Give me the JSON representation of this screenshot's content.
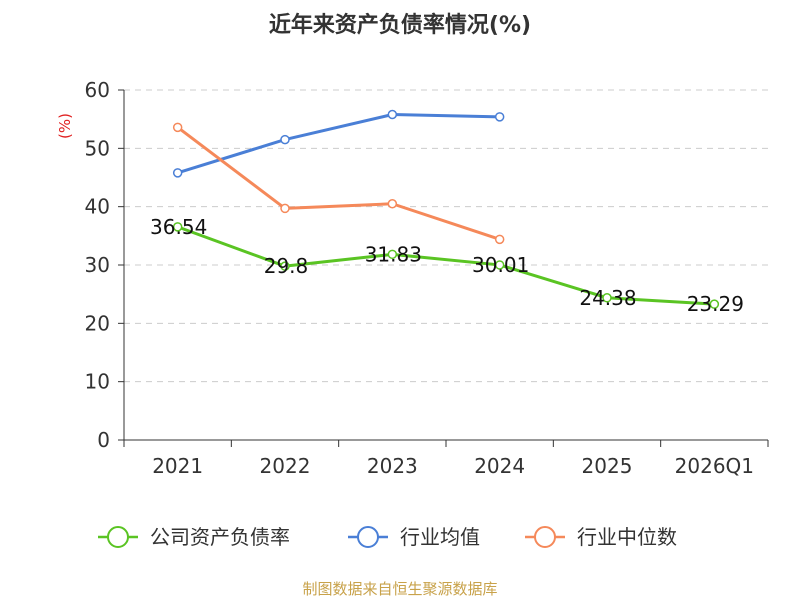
{
  "chart_data": {
    "type": "line",
    "title": "近年来资产负债率情况(%)",
    "ylabel": "(%)",
    "categories": [
      "2021",
      "2022",
      "2023",
      "2024",
      "2025",
      "2026Q1"
    ],
    "ylim": [
      0,
      60
    ],
    "yticks": [
      0,
      10,
      20,
      30,
      40,
      50,
      60
    ],
    "grid": true,
    "legend_position": "bottom",
    "series": [
      {
        "name": "公司资产负债率",
        "color": "#5ac423",
        "labels": [
          "36.54",
          "29.8",
          "31.83",
          "30.01",
          "24.38",
          "23.29"
        ],
        "values": [
          36.54,
          29.8,
          31.83,
          30.01,
          24.38,
          23.29
        ]
      },
      {
        "name": "行业均值",
        "color": "#4a7fd6",
        "values": [
          45.8,
          51.5,
          55.8,
          55.4,
          null,
          null
        ]
      },
      {
        "name": "行业中位数",
        "color": "#f5895a",
        "values": [
          53.6,
          39.7,
          40.5,
          34.4,
          null,
          null
        ]
      }
    ],
    "source": "制图数据来自恒生聚源数据库"
  }
}
